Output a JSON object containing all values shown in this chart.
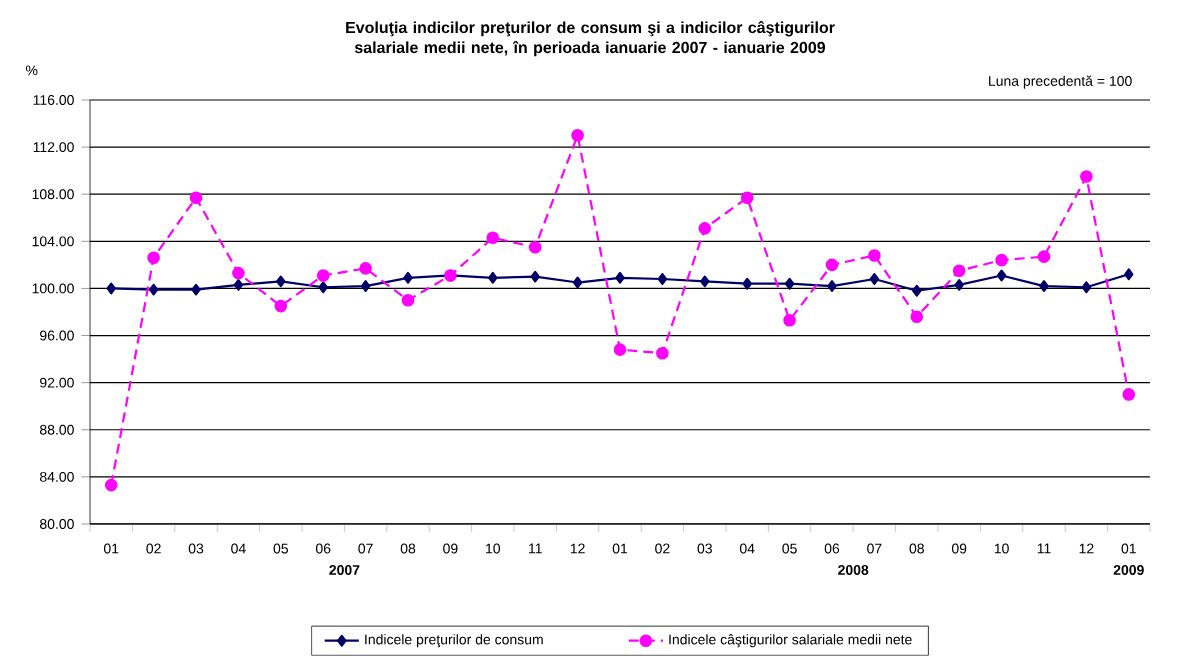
{
  "chart_data": {
    "type": "line",
    "title": "Evoluţia indicilor preţurilor de consum şi a indicilor câştigurilor salariale medii nete, în perioada ianuarie 2007 - ianuarie 2009",
    "ylabel": "%",
    "annotations": [
      "Luna precedentă = 100",
      "2007",
      "2008",
      "2009"
    ],
    "categories": [
      "01",
      "02",
      "03",
      "04",
      "05",
      "06",
      "07",
      "08",
      "09",
      "10",
      "11",
      "12",
      "01",
      "02",
      "03",
      "04",
      "05",
      "06",
      "07",
      "08",
      "09",
      "10",
      "11",
      "12",
      "01"
    ],
    "series": [
      {
        "name": "Indicele preţurilor de consum",
        "color": "#000066",
        "marker": "diamond",
        "line_style": "solid",
        "values": [
          100.0,
          99.9,
          99.9,
          100.3,
          100.6,
          100.1,
          100.2,
          100.9,
          101.1,
          100.9,
          101.0,
          100.5,
          100.9,
          100.8,
          100.6,
          100.4,
          100.4,
          100.2,
          100.8,
          99.8,
          100.3,
          101.1,
          100.2,
          100.1,
          101.2
        ]
      },
      {
        "name": "Indicele câştigurilor salariale medii nete",
        "color": "#ff00ff",
        "marker": "circle",
        "line_style": "dashed",
        "values": [
          83.3,
          102.6,
          107.7,
          101.3,
          98.5,
          101.1,
          101.7,
          99.0,
          101.1,
          104.3,
          103.5,
          113.0,
          94.8,
          94.5,
          105.1,
          107.7,
          97.3,
          102.0,
          102.8,
          97.6,
          101.5,
          102.4,
          102.7,
          109.5,
          91.0
        ]
      }
    ],
    "ylim": [
      80,
      116
    ],
    "yticks": [
      {
        "value": 80,
        "label": "80.00"
      },
      {
        "value": 84,
        "label": "84.00"
      },
      {
        "value": 88,
        "label": "88.00"
      },
      {
        "value": 92,
        "label": "92.00"
      },
      {
        "value": 96,
        "label": "96.00"
      },
      {
        "value": 100,
        "label": "100.00"
      },
      {
        "value": 104,
        "label": "104.00"
      },
      {
        "value": 108,
        "label": "108.00"
      },
      {
        "value": 112,
        "label": "112.00"
      },
      {
        "value": 116,
        "label": "116.00"
      }
    ],
    "grid": "y",
    "legend": "bottom"
  }
}
